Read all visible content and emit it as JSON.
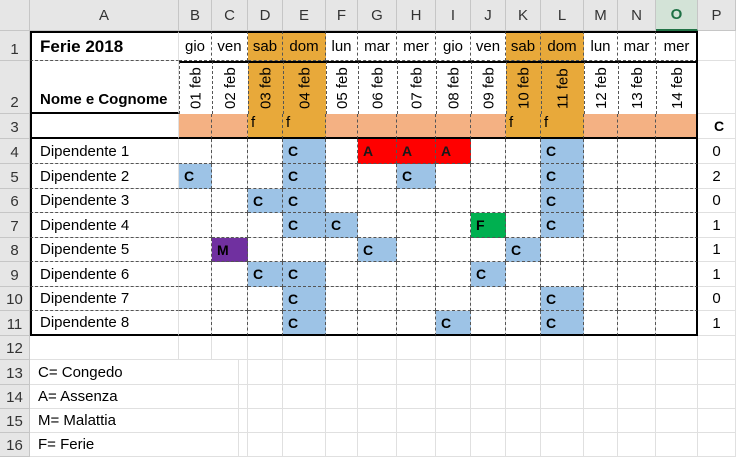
{
  "spreadsheet": {
    "column_headers": [
      "A",
      "B",
      "C",
      "D",
      "E",
      "F",
      "G",
      "H",
      "I",
      "J",
      "K",
      "L",
      "M",
      "N",
      "O",
      "P"
    ],
    "active_column": "O",
    "row_headers": [
      "1",
      "2",
      "3",
      "4",
      "5",
      "6",
      "7",
      "8",
      "9",
      "10",
      "11",
      "12",
      "13",
      "14",
      "15",
      "16"
    ],
    "title": "Ferie 2018",
    "name_header": "Nome e Cognome",
    "day_names": [
      "gio",
      "ven",
      "sab",
      "dom",
      "lun",
      "mar",
      "mer",
      "gio",
      "ven",
      "sab",
      "dom",
      "lun",
      "mar",
      "mer"
    ],
    "dates": [
      "01 feb",
      "02 feb",
      "03 feb",
      "04 feb",
      "05 feb",
      "06 feb",
      "07 feb",
      "08 feb",
      "09 feb",
      "10 feb",
      "11 feb",
      "12 feb",
      "13 feb",
      "14 feb"
    ],
    "weekend_flags": [
      "",
      "",
      "f",
      "f",
      "",
      "",
      "",
      "",
      "",
      "f",
      "f",
      "",
      "",
      ""
    ],
    "p3_label": "C",
    "employees": [
      {
        "name": "Dipendente 1",
        "codes": [
          "",
          "",
          "",
          "C",
          "",
          "A",
          "A",
          "A",
          "",
          "",
          "C",
          "",
          "",
          ""
        ],
        "total": "0"
      },
      {
        "name": "Dipendente 2",
        "codes": [
          "C",
          "",
          "",
          "C",
          "",
          "",
          "C",
          "",
          "",
          "",
          "C",
          "",
          "",
          ""
        ],
        "total": "2"
      },
      {
        "name": "Dipendente 3",
        "codes": [
          "",
          "",
          "C",
          "C",
          "",
          "",
          "",
          "",
          "",
          "",
          "C",
          "",
          "",
          ""
        ],
        "total": "0"
      },
      {
        "name": "Dipendente 4",
        "codes": [
          "",
          "",
          "",
          "C",
          "C",
          "",
          "",
          "",
          "F",
          "",
          "C",
          "",
          "",
          ""
        ],
        "total": "1"
      },
      {
        "name": "Dipendente 5",
        "codes": [
          "",
          "M",
          "",
          "",
          "",
          "C",
          "",
          "",
          "",
          "C",
          "",
          "",
          "",
          ""
        ],
        "total": "1"
      },
      {
        "name": "Dipendente 6",
        "codes": [
          "",
          "",
          "C",
          "C",
          "",
          "",
          "",
          "",
          "C",
          "",
          "",
          "",
          "",
          ""
        ],
        "total": "1"
      },
      {
        "name": "Dipendente 7",
        "codes": [
          "",
          "",
          "",
          "C",
          "",
          "",
          "",
          "",
          "",
          "",
          "C",
          "",
          "",
          ""
        ],
        "total": "0"
      },
      {
        "name": "Dipendente 8",
        "codes": [
          "",
          "",
          "",
          "C",
          "",
          "",
          "",
          "C",
          "",
          "",
          "C",
          "",
          "",
          ""
        ],
        "total": "1"
      }
    ],
    "legend": [
      "C= Congedo",
      "A= Assenza",
      "M= Malattia",
      "F= Ferie"
    ],
    "colors": {
      "weekend": "#e8a93a",
      "row3_band": "#f4b183",
      "congedo": "#9dc3e6",
      "assenza": "#ff0000",
      "malattia": "#7030a0",
      "ferie": "#00b050"
    }
  }
}
